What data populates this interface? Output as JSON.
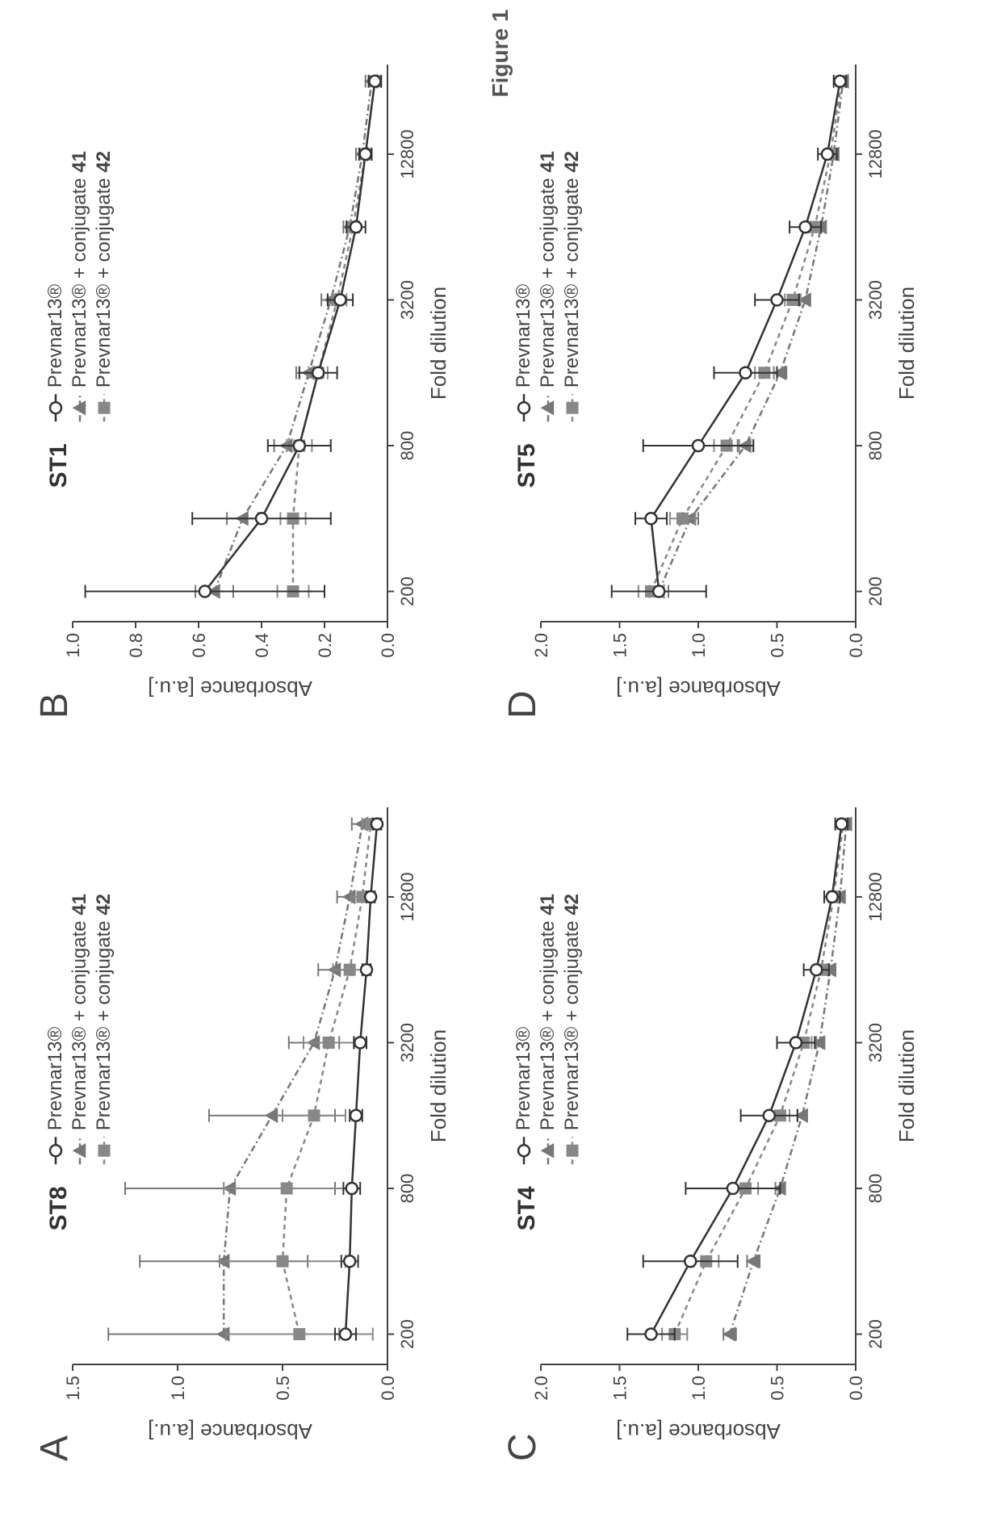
{
  "figure_title": "Figure 1",
  "global": {
    "colors": {
      "background": "#ffffff",
      "axis": "#444444",
      "text": "#444444",
      "series_prev": "#333333",
      "series_c41": "#777777",
      "series_c42": "#888888"
    },
    "font": {
      "tick_size": 22,
      "axis_label_size": 26,
      "title_size": 30,
      "legend_size": 24,
      "panel_letter_size": 48
    },
    "x_axis": {
      "label": "Fold dilution",
      "ticks": [
        200,
        800,
        3200,
        12800
      ],
      "scale": "log",
      "domain": [
        150,
        30000
      ]
    },
    "y_axis_label": "Absorbance [a.u.]",
    "legend": {
      "items": [
        {
          "key": "prev",
          "label": "Prevnar13®",
          "marker": "open_circle",
          "line_style": "solid",
          "color": "#333333"
        },
        {
          "key": "c41",
          "label_prefix": "Prevnar13® + conjugate ",
          "label_bold": "41",
          "marker": "filled_triangle",
          "line_style": "dash_dot",
          "color": "#777777"
        },
        {
          "key": "c42",
          "label_prefix": "Prevnar13® + conjugate ",
          "label_bold": "42",
          "marker": "filled_square",
          "line_style": "dash",
          "color": "#888888"
        }
      ]
    },
    "marker_size": 7,
    "line_width": 2.5,
    "error_cap_width": 8
  },
  "panels": [
    {
      "letter": "A",
      "title": "ST8",
      "y_axis": {
        "min": 0.0,
        "max": 1.5,
        "ticks": [
          0.0,
          0.5,
          1.0,
          1.5
        ]
      },
      "x_values": [
        200,
        400,
        800,
        1600,
        3200,
        6400,
        12800,
        25600
      ],
      "series": {
        "prev": {
          "y": [
            0.2,
            0.18,
            0.17,
            0.15,
            0.13,
            0.1,
            0.08,
            0.05
          ],
          "err": [
            0.05,
            0.04,
            0.04,
            0.03,
            0.03,
            0.02,
            0.02,
            0.02
          ]
        },
        "c41": {
          "y": [
            0.78,
            0.78,
            0.75,
            0.55,
            0.35,
            0.25,
            0.18,
            0.12
          ],
          "err": [
            0.55,
            0.4,
            0.5,
            0.3,
            0.12,
            0.08,
            0.06,
            0.05
          ]
        },
        "c42": {
          "y": [
            0.42,
            0.5,
            0.48,
            0.35,
            0.28,
            0.18,
            0.12,
            0.08
          ],
          "err": [
            0.35,
            0.3,
            0.3,
            0.15,
            0.12,
            0.08,
            0.05,
            0.04
          ]
        }
      }
    },
    {
      "letter": "B",
      "title": "ST1",
      "y_axis": {
        "min": 0.0,
        "max": 1.0,
        "ticks": [
          0.0,
          0.2,
          0.4,
          0.6,
          0.8,
          1.0
        ]
      },
      "x_values": [
        200,
        400,
        800,
        1600,
        3200,
        6400,
        12800,
        25600
      ],
      "series": {
        "prev": {
          "y": [
            0.58,
            0.4,
            0.28,
            0.22,
            0.15,
            0.1,
            0.07,
            0.04
          ],
          "err": [
            0.38,
            0.22,
            0.1,
            0.06,
            0.04,
            0.03,
            0.02,
            0.02
          ]
        },
        "c41": {
          "y": [
            0.55,
            0.46,
            0.32,
            0.25,
            0.18,
            0.12,
            0.08,
            0.05
          ],
          "err": [
            0.06,
            0.05,
            0.04,
            0.04,
            0.03,
            0.02,
            0.02,
            0.02
          ]
        },
        "c42": {
          "y": [
            0.3,
            0.3,
            0.28,
            0.22,
            0.16,
            0.11,
            0.07,
            0.04
          ],
          "err": [
            0.05,
            0.04,
            0.04,
            0.03,
            0.03,
            0.02,
            0.02,
            0.02
          ]
        }
      }
    },
    {
      "letter": "C",
      "title": "ST4",
      "y_axis": {
        "min": 0.0,
        "max": 2.0,
        "ticks": [
          0.0,
          0.5,
          1.0,
          1.5,
          2.0
        ]
      },
      "x_values": [
        200,
        400,
        800,
        1600,
        3200,
        6400,
        12800,
        25600
      ],
      "series": {
        "prev": {
          "y": [
            1.3,
            1.05,
            0.78,
            0.55,
            0.38,
            0.25,
            0.15,
            0.09
          ],
          "err": [
            0.15,
            0.3,
            0.3,
            0.18,
            0.12,
            0.08,
            0.05,
            0.04
          ]
        },
        "c41": {
          "y": [
            0.8,
            0.65,
            0.48,
            0.34,
            0.23,
            0.16,
            0.1,
            0.06
          ],
          "err": [
            0.04,
            0.04,
            0.03,
            0.03,
            0.02,
            0.02,
            0.02,
            0.02
          ]
        },
        "c42": {
          "y": [
            1.15,
            0.95,
            0.7,
            0.48,
            0.33,
            0.22,
            0.14,
            0.08
          ],
          "err": [
            0.08,
            0.08,
            0.08,
            0.06,
            0.05,
            0.04,
            0.03,
            0.02
          ]
        }
      }
    },
    {
      "letter": "D",
      "title": "ST5",
      "y_axis": {
        "min": 0.0,
        "max": 2.0,
        "ticks": [
          0.0,
          0.5,
          1.0,
          1.5,
          2.0
        ]
      },
      "x_values": [
        200,
        400,
        800,
        1600,
        3200,
        6400,
        12800,
        25600
      ],
      "series": {
        "prev": {
          "y": [
            1.25,
            1.3,
            1.0,
            0.7,
            0.5,
            0.32,
            0.18,
            0.1
          ],
          "err": [
            0.3,
            0.1,
            0.35,
            0.2,
            0.14,
            0.1,
            0.06,
            0.04
          ]
        },
        "c41": {
          "y": [
            1.25,
            1.05,
            0.7,
            0.48,
            0.32,
            0.22,
            0.14,
            0.08
          ],
          "err": [
            0.06,
            0.05,
            0.05,
            0.04,
            0.03,
            0.03,
            0.02,
            0.02
          ]
        },
        "c42": {
          "y": [
            1.3,
            1.1,
            0.82,
            0.58,
            0.4,
            0.26,
            0.16,
            0.09
          ],
          "err": [
            0.08,
            0.08,
            0.08,
            0.06,
            0.05,
            0.04,
            0.03,
            0.02
          ]
        }
      }
    }
  ]
}
